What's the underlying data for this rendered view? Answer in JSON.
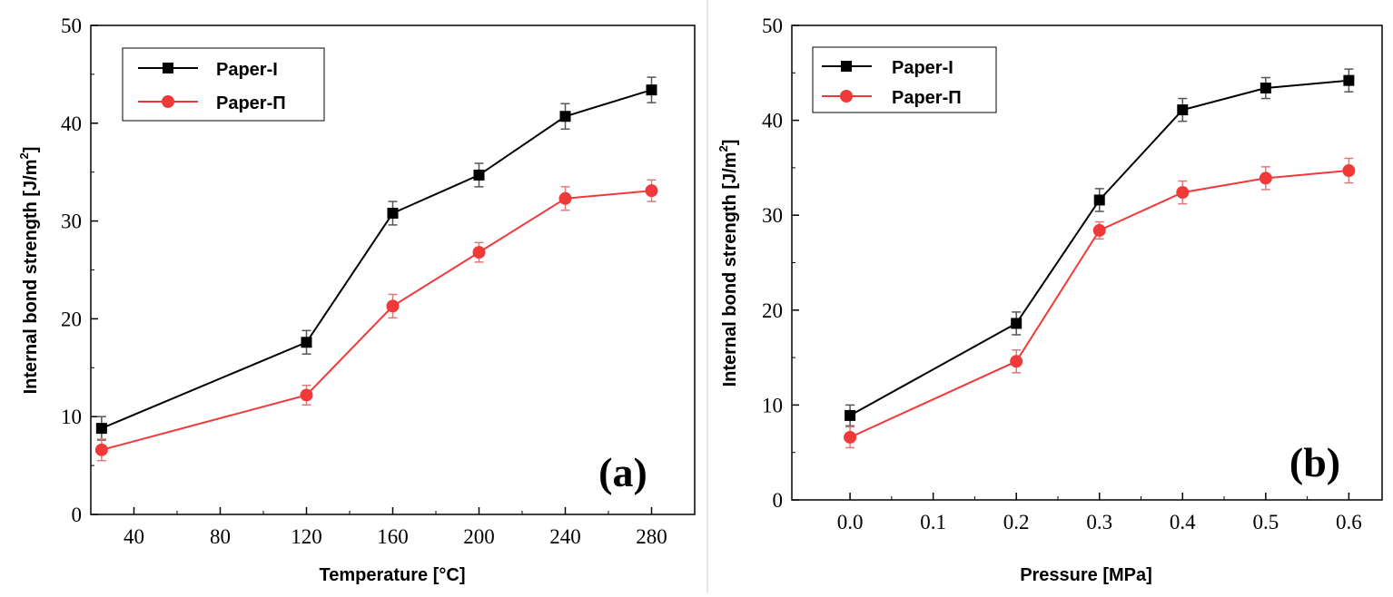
{
  "chart_data": [
    {
      "type": "line",
      "panel_label": "(a)",
      "xlabel": "Temperature [°C]",
      "ylabel": "Internal bond strength [J/m",
      "ylabel_sup": "2",
      "ylabel_end": "]",
      "xlim": [
        20,
        300
      ],
      "ylim": [
        0,
        50
      ],
      "xticks": [
        40,
        80,
        120,
        160,
        200,
        240,
        280
      ],
      "xtick_labels": [
        "40",
        "80",
        "120",
        "160",
        "200",
        "240",
        "280"
      ],
      "yticks": [
        0,
        10,
        20,
        30,
        40,
        50
      ],
      "ytick_labels": [
        "0",
        "10",
        "20",
        "30",
        "40",
        "50"
      ],
      "legend_position": "top-left",
      "x": [
        25,
        120,
        160,
        200,
        240,
        280
      ],
      "series": [
        {
          "name": "Paper-I",
          "marker": "square",
          "color": "#000000",
          "values": [
            8.8,
            17.6,
            30.8,
            34.7,
            40.7,
            43.4
          ],
          "errors": [
            1.2,
            1.2,
            1.2,
            1.2,
            1.3,
            1.3
          ]
        },
        {
          "name": "Paper-Π",
          "marker": "circle",
          "color": "#f03a3a",
          "values": [
            6.6,
            12.2,
            21.3,
            26.8,
            32.3,
            33.1
          ],
          "errors": [
            1.1,
            1.0,
            1.2,
            1.0,
            1.2,
            1.1
          ]
        }
      ]
    },
    {
      "type": "line",
      "panel_label": "(b)",
      "xlabel": "Pressure [MPa]",
      "ylabel": "Internal bond strength [J/m",
      "ylabel_sup": "2",
      "ylabel_end": "]",
      "xlim": [
        -0.07,
        0.64
      ],
      "ylim": [
        0,
        50
      ],
      "xticks": [
        0.0,
        0.1,
        0.2,
        0.3,
        0.4,
        0.5,
        0.6
      ],
      "xtick_labels": [
        "0.0",
        "0.1",
        "0.2",
        "0.3",
        "0.4",
        "0.5",
        "0.6"
      ],
      "yticks": [
        0,
        10,
        20,
        30,
        40,
        50
      ],
      "ytick_labels": [
        "0",
        "10",
        "20",
        "30",
        "40",
        "50"
      ],
      "legend_position": "top-left",
      "x": [
        0.0,
        0.2,
        0.3,
        0.4,
        0.5,
        0.6
      ],
      "series": [
        {
          "name": "Paper-I",
          "marker": "square",
          "color": "#000000",
          "values": [
            8.9,
            18.6,
            31.6,
            41.1,
            43.4,
            44.2
          ],
          "errors": [
            1.1,
            1.2,
            1.2,
            1.2,
            1.1,
            1.2
          ]
        },
        {
          "name": "Paper-Π",
          "marker": "circle",
          "color": "#f03a3a",
          "values": [
            6.6,
            14.6,
            28.4,
            32.4,
            33.9,
            34.7
          ],
          "errors": [
            1.1,
            1.2,
            0.9,
            1.2,
            1.2,
            1.3
          ]
        }
      ]
    }
  ]
}
